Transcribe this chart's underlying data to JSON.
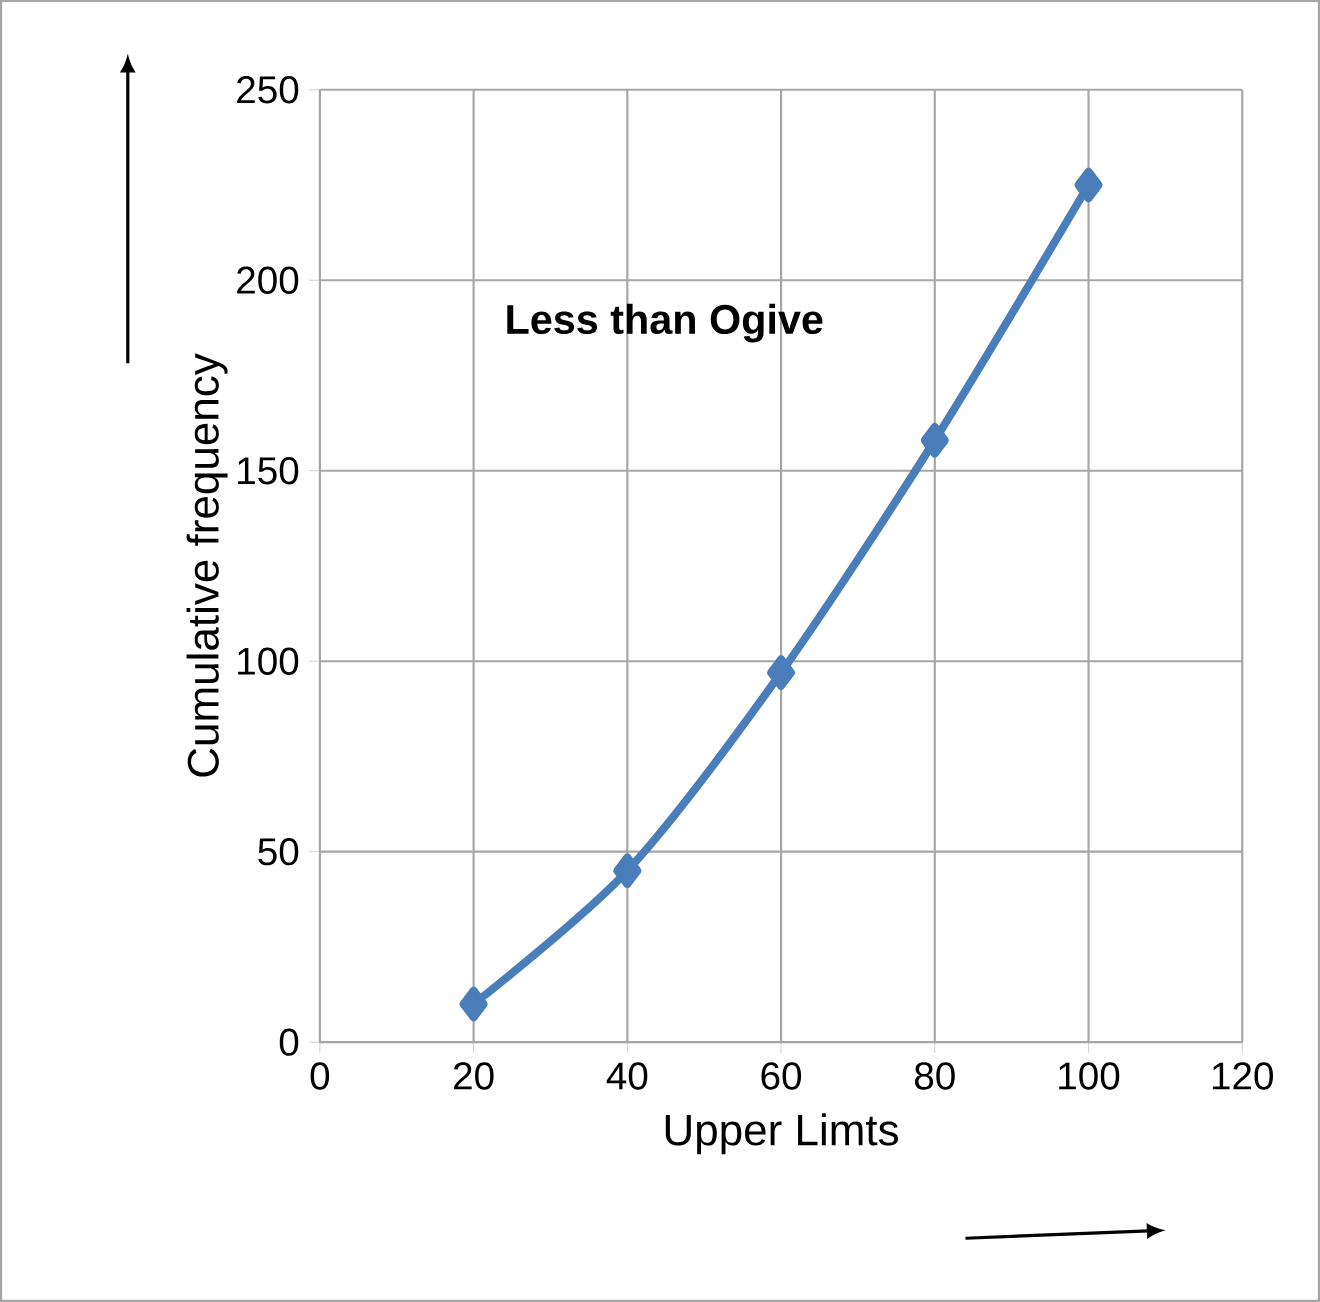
{
  "chart_data": {
    "type": "line",
    "xlabel": "Upper Limts",
    "ylabel": "Cumulative frequency",
    "annotations": [
      "Less than Ogive"
    ],
    "x": [
      20,
      40,
      60,
      80,
      100
    ],
    "series": [
      {
        "color": "#4a7ebb",
        "values": [
          10,
          45,
          97,
          158,
          225
        ]
      }
    ],
    "xlim": [
      0,
      120
    ],
    "xticks": [
      0,
      20,
      40,
      60,
      80,
      100,
      120
    ],
    "ylim": [
      0,
      250
    ],
    "yticks": [
      0,
      50,
      100,
      150,
      200,
      250
    ],
    "grid": true,
    "marker": "diamond",
    "line_style": "solid"
  }
}
